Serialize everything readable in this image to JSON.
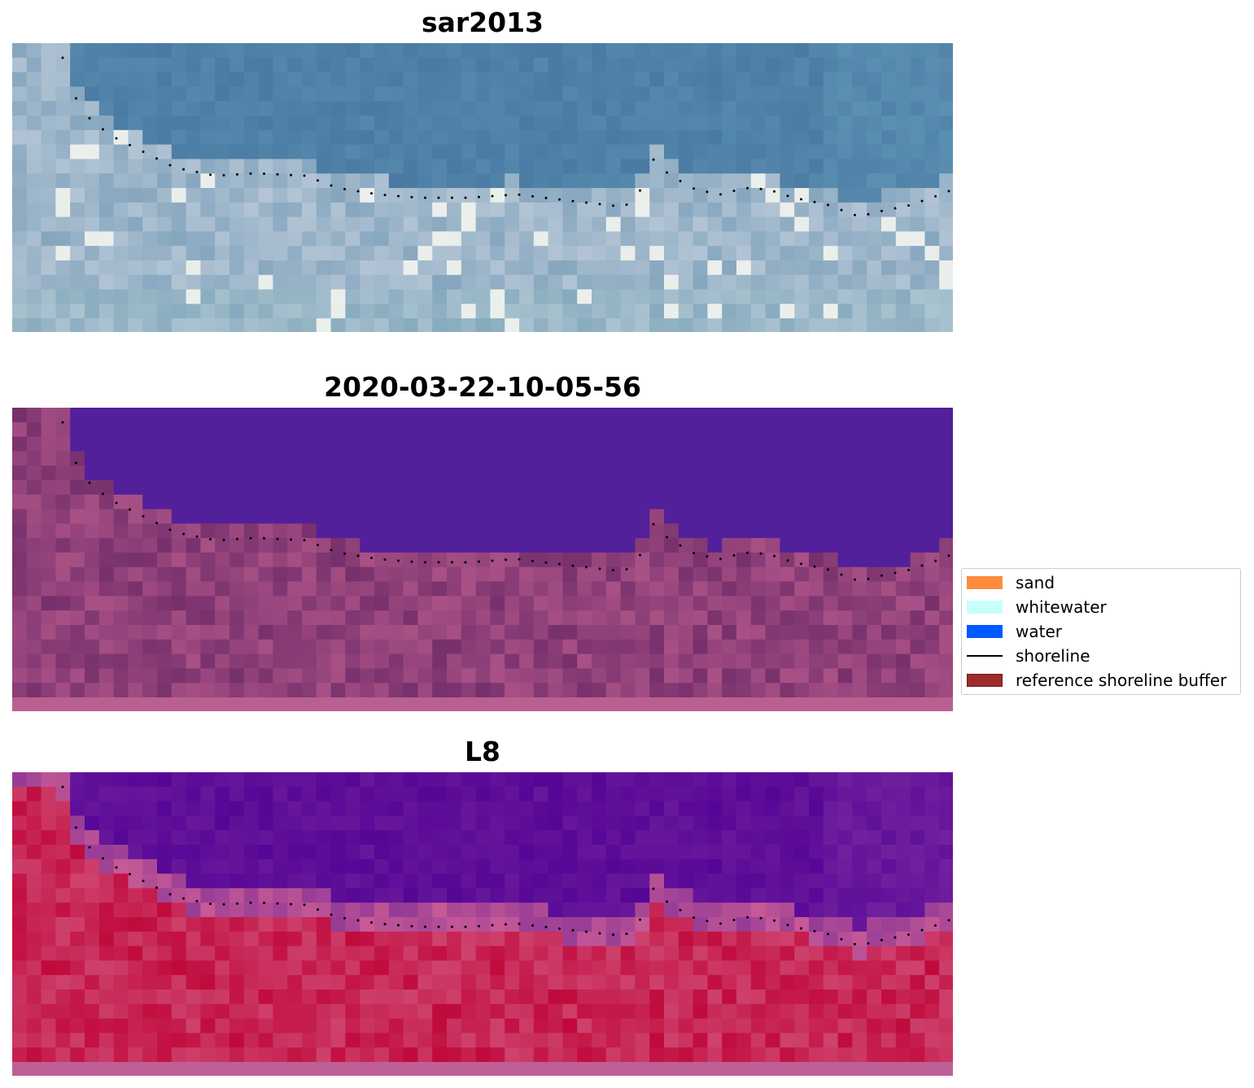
{
  "panels": [
    {
      "title": "sar2013"
    },
    {
      "title": "2020-03-22-10-05-56"
    },
    {
      "title": "L8"
    }
  ],
  "legend": {
    "items": [
      {
        "label": "sand",
        "color": "#ff8c3c",
        "kind": "patch"
      },
      {
        "label": "whitewater",
        "color": "#c8fffa",
        "kind": "patch"
      },
      {
        "label": "water",
        "color": "#005aff",
        "kind": "patch"
      },
      {
        "label": "shoreline",
        "color": "#000000",
        "kind": "line"
      },
      {
        "label": "reference shoreline buffer",
        "color": "#9b2d2d",
        "kind": "patch"
      }
    ]
  },
  "colors": {
    "sar_water": "#4a7aa2",
    "sar_surf": "#b9c8d8",
    "class_water": "#52209a",
    "class_land": "#8a3f78",
    "l8_water": "#5a0a98",
    "l8_land": "#c02850"
  }
}
